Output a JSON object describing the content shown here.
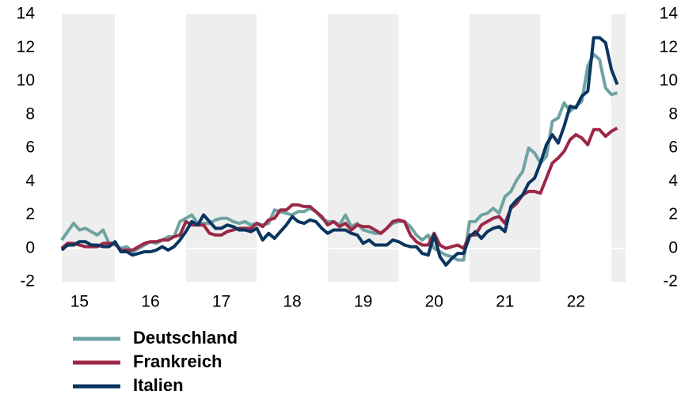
{
  "chart_data": {
    "type": "line",
    "x": [
      2015.25,
      2015.333,
      2015.417,
      2015.5,
      2015.583,
      2015.667,
      2015.75,
      2015.833,
      2015.917,
      2016.0,
      2016.083,
      2016.167,
      2016.25,
      2016.333,
      2016.417,
      2016.5,
      2016.583,
      2016.667,
      2016.75,
      2016.833,
      2016.917,
      2017.0,
      2017.083,
      2017.167,
      2017.25,
      2017.333,
      2017.417,
      2017.5,
      2017.583,
      2017.667,
      2017.75,
      2017.833,
      2017.917,
      2018.0,
      2018.083,
      2018.167,
      2018.25,
      2018.333,
      2018.417,
      2018.5,
      2018.583,
      2018.667,
      2018.75,
      2018.833,
      2018.917,
      2019.0,
      2019.083,
      2019.167,
      2019.25,
      2019.333,
      2019.417,
      2019.5,
      2019.583,
      2019.667,
      2019.75,
      2019.833,
      2019.917,
      2020.0,
      2020.083,
      2020.167,
      2020.25,
      2020.333,
      2020.417,
      2020.5,
      2020.583,
      2020.667,
      2020.75,
      2020.833,
      2020.917,
      2021.0,
      2021.083,
      2021.167,
      2021.25,
      2021.333,
      2021.417,
      2021.5,
      2021.583,
      2021.667,
      2021.75,
      2021.833,
      2021.917,
      2022.0,
      2022.083,
      2022.167,
      2022.25,
      2022.333,
      2022.417,
      2022.5,
      2022.583,
      2022.667,
      2022.75,
      2022.833,
      2022.917,
      2023.0,
      2023.083
    ],
    "series": [
      {
        "name": "Deutschland",
        "color": "#6fa3a3",
        "values": [
          0.5,
          1.0,
          1.5,
          1.1,
          1.2,
          1.0,
          0.8,
          1.1,
          0.3,
          0.2,
          0.0,
          0.1,
          -0.2,
          0.0,
          0.2,
          0.4,
          0.3,
          0.5,
          0.7,
          0.7,
          1.6,
          1.8,
          2.0,
          1.5,
          1.5,
          1.5,
          1.7,
          1.8,
          1.8,
          1.6,
          1.5,
          1.6,
          1.4,
          1.5,
          1.4,
          1.5,
          2.3,
          2.2,
          2.1,
          2.0,
          2.2,
          2.2,
          2.4,
          2.2,
          1.8,
          1.6,
          1.6,
          1.4,
          2.0,
          1.3,
          1.5,
          1.1,
          1.0,
          0.9,
          0.9,
          1.2,
          1.5,
          1.6,
          1.6,
          1.3,
          0.8,
          0.5,
          0.8,
          0.0,
          -0.2,
          -0.4,
          -0.5,
          -0.7,
          -0.7,
          1.6,
          1.6,
          2.0,
          2.1,
          2.4,
          2.1,
          3.1,
          3.4,
          4.1,
          4.6,
          6.0,
          5.7,
          5.1,
          5.5,
          7.6,
          7.8,
          8.7,
          8.2,
          8.5,
          8.8,
          10.9,
          11.6,
          11.3,
          9.6,
          9.2,
          9.3
        ]
      },
      {
        "name": "Frankreich",
        "color": "#9b2846",
        "values": [
          0.0,
          0.3,
          0.3,
          0.2,
          0.1,
          0.1,
          0.1,
          0.3,
          0.3,
          0.3,
          -0.1,
          -0.1,
          -0.1,
          0.1,
          0.3,
          0.4,
          0.4,
          0.5,
          0.5,
          0.7,
          0.8,
          1.6,
          1.4,
          1.4,
          1.4,
          0.9,
          0.8,
          0.8,
          1.0,
          1.1,
          1.2,
          1.2,
          1.2,
          1.5,
          1.3,
          1.7,
          1.8,
          2.3,
          2.3,
          2.6,
          2.6,
          2.5,
          2.5,
          2.2,
          1.9,
          1.4,
          1.6,
          1.3,
          1.5,
          1.1,
          1.4,
          1.3,
          1.3,
          1.1,
          0.9,
          1.2,
          1.6,
          1.7,
          1.6,
          0.8,
          0.4,
          0.2,
          0.2,
          0.9,
          0.2,
          0.0,
          0.1,
          0.2,
          0.0,
          0.8,
          0.8,
          1.4,
          1.6,
          1.8,
          1.9,
          1.5,
          2.4,
          2.7,
          3.2,
          3.4,
          3.4,
          3.3,
          4.2,
          5.1,
          5.4,
          5.8,
          6.5,
          6.8,
          6.6,
          6.2,
          7.1,
          7.1,
          6.7,
          7.0,
          7.2
        ]
      },
      {
        "name": "Italien",
        "color": "#0a3560",
        "values": [
          -0.1,
          0.2,
          0.2,
          0.4,
          0.4,
          0.2,
          0.2,
          0.1,
          0.1,
          0.4,
          -0.2,
          -0.2,
          -0.4,
          -0.3,
          -0.2,
          -0.2,
          -0.1,
          0.1,
          -0.1,
          0.1,
          0.5,
          1.0,
          1.6,
          1.4,
          2.0,
          1.6,
          1.2,
          1.2,
          1.4,
          1.3,
          1.1,
          1.1,
          1.0,
          1.2,
          0.5,
          0.9,
          0.6,
          1.0,
          1.4,
          1.9,
          1.6,
          1.5,
          1.7,
          1.6,
          1.2,
          0.9,
          1.1,
          1.1,
          1.1,
          0.9,
          0.8,
          0.3,
          0.5,
          0.2,
          0.2,
          0.2,
          0.5,
          0.4,
          0.2,
          0.1,
          0.1,
          -0.3,
          -0.4,
          0.8,
          -0.5,
          -1.0,
          -0.6,
          -0.3,
          -0.3,
          0.7,
          1.0,
          0.6,
          1.0,
          1.2,
          1.3,
          1.0,
          2.5,
          2.9,
          3.2,
          3.9,
          4.2,
          5.1,
          6.2,
          6.8,
          6.3,
          7.3,
          8.5,
          8.4,
          9.1,
          9.4,
          12.6,
          12.6,
          12.3,
          10.7,
          9.8
        ]
      }
    ],
    "xlim": [
      2015.25,
      2023.2
    ],
    "xticks": [
      {
        "value": 2015.5,
        "label": "15"
      },
      {
        "value": 2016.5,
        "label": "16"
      },
      {
        "value": 2017.5,
        "label": "17"
      },
      {
        "value": 2018.5,
        "label": "18"
      },
      {
        "value": 2019.5,
        "label": "19"
      },
      {
        "value": 2020.5,
        "label": "20"
      },
      {
        "value": 2021.5,
        "label": "21"
      },
      {
        "value": 2022.5,
        "label": "22"
      }
    ],
    "ylim": [
      -2,
      14
    ],
    "yticks": [
      -2,
      0,
      2,
      4,
      6,
      8,
      10,
      12,
      14
    ],
    "y2lim": [
      -2,
      14
    ],
    "y2ticks": [
      -2,
      0,
      2,
      4,
      6,
      8,
      10,
      12,
      14
    ],
    "shaded_ranges": [
      [
        2015,
        2016
      ],
      [
        2017,
        2018
      ],
      [
        2019,
        2020
      ],
      [
        2021,
        2022
      ],
      [
        2023,
        2024
      ]
    ],
    "shade_color": "#eeeeee"
  }
}
